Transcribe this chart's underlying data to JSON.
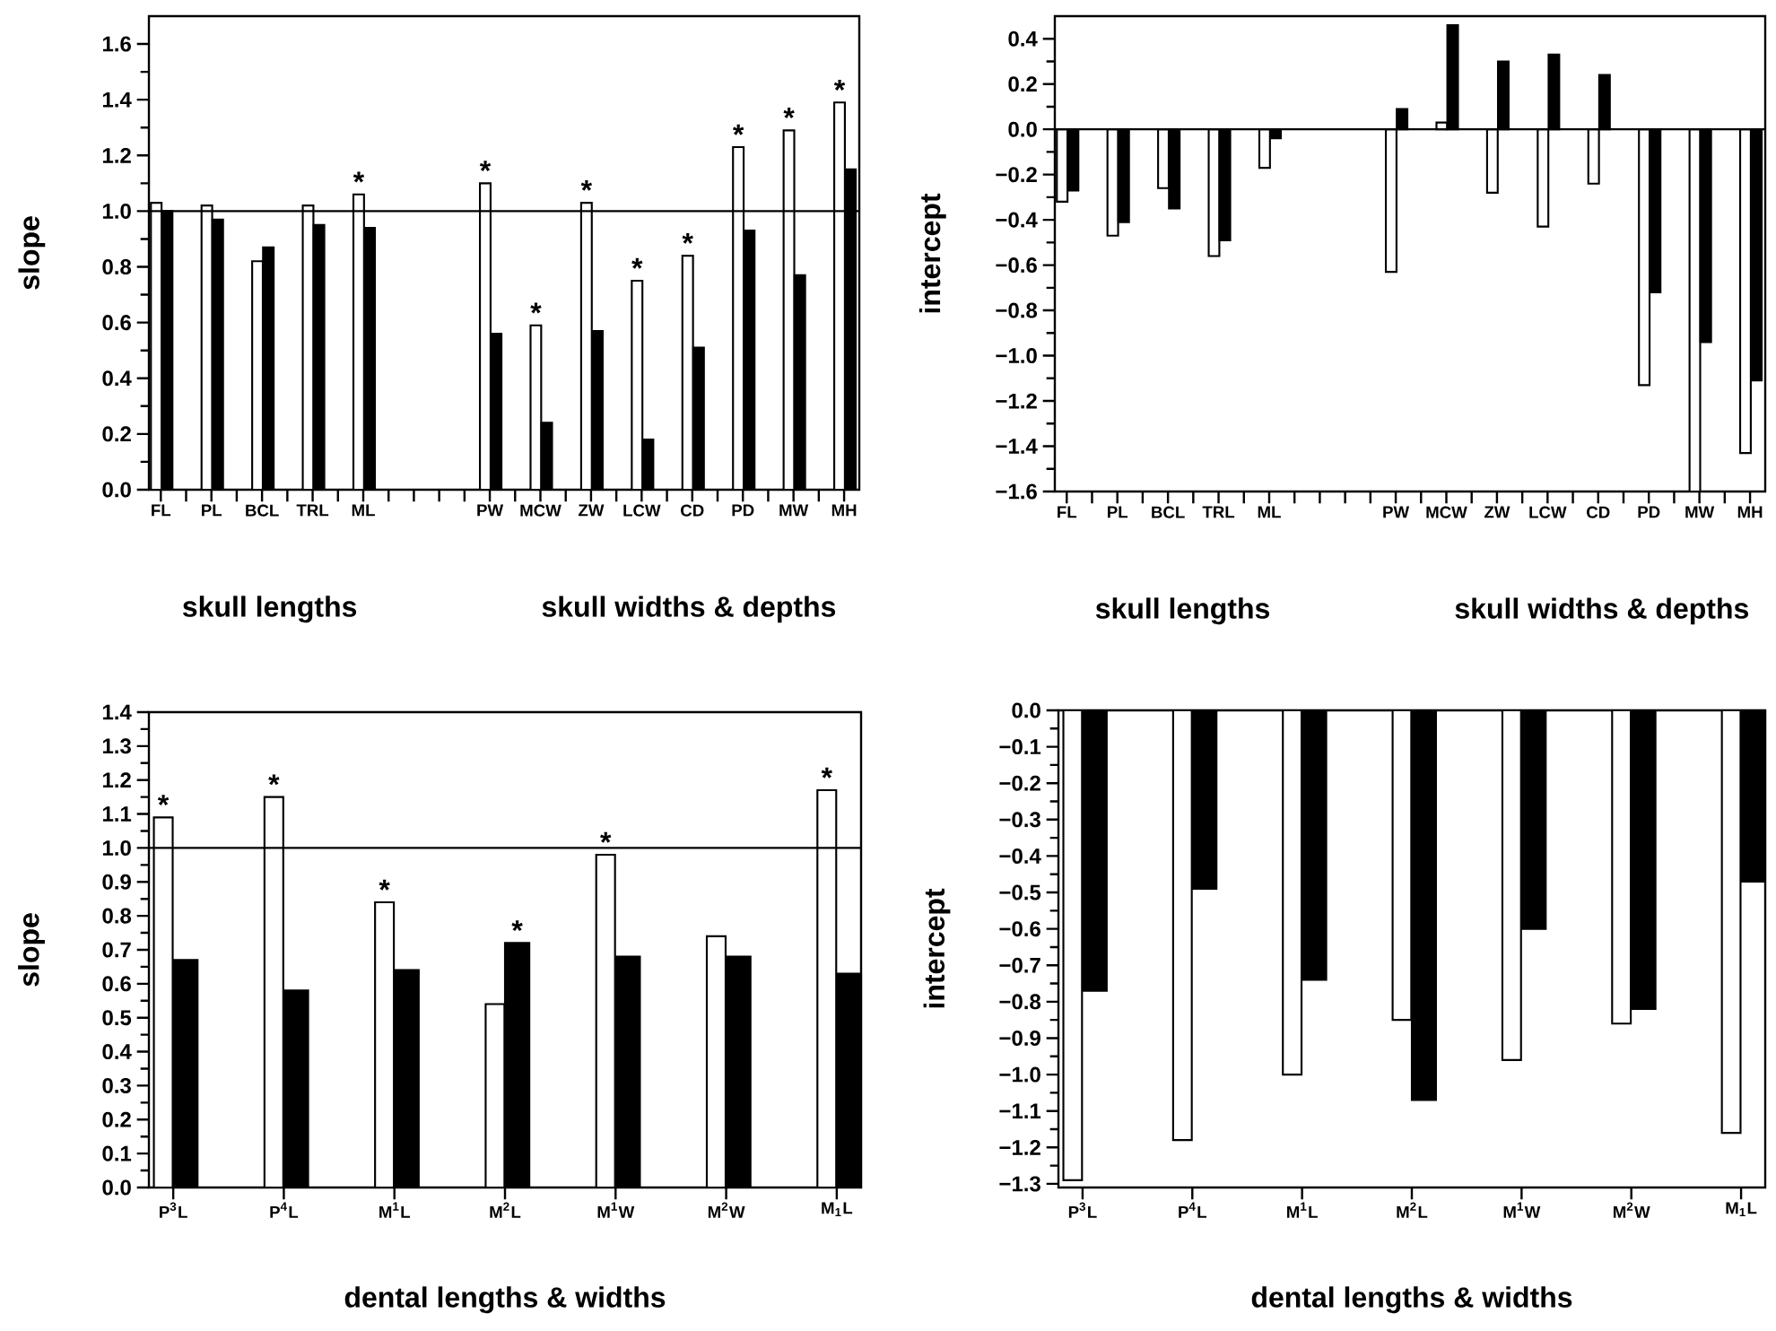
{
  "chart_data": [
    {
      "type": "bar",
      "ylabel": "slope",
      "categories": [
        "FL",
        null,
        "PL",
        null,
        "BCL",
        null,
        "TRL",
        null,
        "ML",
        null,
        null,
        null,
        null,
        "PW",
        null,
        "MCW",
        null,
        "ZW",
        null,
        "LCW",
        null,
        "CD",
        null,
        "PD",
        null,
        "MW",
        null,
        "MH"
      ],
      "series": [
        {
          "color": "#ffffff",
          "values": [
            1.03,
            null,
            1.02,
            null,
            0.82,
            null,
            1.02,
            null,
            1.06,
            null,
            null,
            null,
            null,
            1.1,
            null,
            0.59,
            null,
            1.03,
            null,
            0.75,
            null,
            0.84,
            null,
            1.23,
            null,
            1.29,
            null,
            1.39
          ]
        },
        {
          "color": "#000000",
          "values": [
            1.0,
            null,
            0.97,
            null,
            0.87,
            null,
            0.95,
            null,
            0.94,
            null,
            null,
            null,
            null,
            0.56,
            null,
            0.24,
            null,
            0.57,
            null,
            0.18,
            null,
            0.51,
            null,
            0.93,
            null,
            0.77,
            null,
            1.15
          ]
        }
      ],
      "ylim": [
        0,
        1.7
      ],
      "yticks": [
        {
          "value": 0,
          "label": "0.0"
        },
        {
          "value": 0.2,
          "label": "0.2"
        },
        {
          "value": 0.4,
          "label": "0.4"
        },
        {
          "value": 0.6,
          "label": "0.6"
        },
        {
          "value": 0.8,
          "label": "0.8"
        },
        {
          "value": 1.0,
          "label": "1.0"
        },
        {
          "value": 1.2,
          "label": "1.2"
        },
        {
          "value": 1.4,
          "label": "1.4"
        },
        {
          "value": 1.6,
          "label": "1.6"
        }
      ],
      "ref_lines": [
        {
          "axis": "y",
          "value": 1.0
        }
      ],
      "annotations": [
        {
          "text": "*",
          "x": "ML",
          "y": 1.06
        },
        {
          "text": "*",
          "x": "PW",
          "y": 1.1
        },
        {
          "text": "*",
          "x": "MCW",
          "y": 0.59
        },
        {
          "text": "*",
          "x": "ZW",
          "y": 1.03
        },
        {
          "text": "*",
          "x": "LCW",
          "y": 0.75
        },
        {
          "text": "*",
          "x": "CD",
          "y": 0.84
        },
        {
          "text": "*",
          "x": "PD",
          "y": 1.23
        },
        {
          "text": "*",
          "x": "MW",
          "y": 1.29
        },
        {
          "text": "*",
          "x": "MH",
          "y": 1.39
        },
        "skull lengths",
        "skull widths & depths"
      ]
    },
    {
      "type": "bar",
      "ylabel": "intercept",
      "categories": [
        "FL",
        null,
        "PL",
        null,
        "BCL",
        null,
        "TRL",
        null,
        "ML",
        null,
        null,
        null,
        null,
        "PW",
        null,
        "MCW",
        null,
        "ZW",
        null,
        "LCW",
        null,
        "CD",
        null,
        "PD",
        null,
        "MW",
        null,
        "MH"
      ],
      "series": [
        {
          "color": "#ffffff",
          "values": [
            -0.32,
            null,
            -0.47,
            null,
            -0.26,
            null,
            -0.56,
            null,
            -0.17,
            null,
            null,
            null,
            null,
            -0.63,
            null,
            0.03,
            null,
            -0.28,
            null,
            -0.43,
            null,
            -0.24,
            null,
            -1.13,
            null,
            -1.6,
            null,
            -1.43
          ]
        },
        {
          "color": "#000000",
          "values": [
            -0.27,
            null,
            -0.41,
            null,
            -0.35,
            null,
            -0.49,
            null,
            -0.04,
            null,
            null,
            null,
            null,
            0.09,
            null,
            0.46,
            null,
            0.3,
            null,
            0.33,
            null,
            0.24,
            null,
            -0.72,
            null,
            -0.94,
            null,
            -1.11
          ]
        }
      ],
      "ylim": [
        -1.6,
        0.5
      ],
      "yticks": [
        {
          "value": 0.4,
          "label": "0.4"
        },
        {
          "value": 0.2,
          "label": "0.2"
        },
        {
          "value": 0,
          "label": "0.0"
        },
        {
          "value": -0.2,
          "label": "−0.2"
        },
        {
          "value": -0.4,
          "label": "−0.4"
        },
        {
          "value": -0.6,
          "label": "−0.6"
        },
        {
          "value": -0.8,
          "label": "−0.8"
        },
        {
          "value": -1.0,
          "label": "−1.0"
        },
        {
          "value": -1.2,
          "label": "−1.2"
        },
        {
          "value": -1.4,
          "label": "−1.4"
        },
        {
          "value": -1.6,
          "label": "−1.6"
        }
      ],
      "ref_lines": [
        {
          "axis": "y",
          "value": 0
        }
      ],
      "annotations": [
        "skull lengths",
        "skull widths & depths"
      ]
    },
    {
      "type": "bar",
      "ylabel": "slope",
      "xlabel": "dental lengths & widths",
      "categories": [
        "P$^{3}$L",
        "P$^{4}$L",
        "M$^{1}$L",
        "M$^{2}$L",
        "M$^{1}$W",
        "M$^{2}$W",
        "M$_{1}$L"
      ],
      "series": [
        {
          "color": "#ffffff",
          "values": [
            1.09,
            1.15,
            0.84,
            0.54,
            0.98,
            0.74,
            1.17
          ]
        },
        {
          "color": "#000000",
          "values": [
            0.67,
            0.58,
            0.64,
            0.72,
            0.68,
            0.68,
            0.63
          ]
        }
      ],
      "ylim": [
        0,
        1.4
      ],
      "yticks": [
        {
          "value": 0,
          "label": "0.0"
        },
        {
          "value": 0.1,
          "label": "0.1"
        },
        {
          "value": 0.2,
          "label": "0.2"
        },
        {
          "value": 0.3,
          "label": "0.3"
        },
        {
          "value": 0.4,
          "label": "0.4"
        },
        {
          "value": 0.5,
          "label": "0.5"
        },
        {
          "value": 0.6,
          "label": "0.6"
        },
        {
          "value": 0.7,
          "label": "0.7"
        },
        {
          "value": 0.8,
          "label": "0.8"
        },
        {
          "value": 0.9,
          "label": "0.9"
        },
        {
          "value": 1.0,
          "label": "1.0"
        },
        {
          "value": 1.1,
          "label": "1.1"
        },
        {
          "value": 1.2,
          "label": "1.2"
        },
        {
          "value": 1.3,
          "label": "1.3"
        },
        {
          "value": 1.4,
          "label": "1.4"
        }
      ],
      "ref_lines": [
        {
          "axis": "y",
          "value": 1.0
        }
      ],
      "annotations": [
        {
          "text": "*",
          "x": "P$^{3}$L",
          "y": 1.09
        },
        {
          "text": "*",
          "x": "P$^{4}$L",
          "y": 1.15
        },
        {
          "text": "*",
          "x": "M$^{1}$L",
          "y": 0.84
        },
        {
          "text": "*",
          "x": "M$^{2}$L",
          "y": 0.72
        },
        {
          "text": "*",
          "x": "M$^{1}$W",
          "y": 0.98
        },
        {
          "text": "*",
          "x": "M$_{1}$L",
          "y": 1.17
        }
      ]
    },
    {
      "type": "bar",
      "ylabel": "intercept",
      "xlabel": "dental lengths & widths",
      "categories": [
        "P$^{3}$L",
        "P$^{4}$L",
        "M$^{1}$L",
        "M$^{2}$L",
        "M$^{1}$W",
        "M$^{2}$W",
        "M$_{1}$L"
      ],
      "series": [
        {
          "color": "#ffffff",
          "values": [
            -1.29,
            -1.18,
            -1.0,
            -0.85,
            -0.96,
            -0.86,
            -1.16
          ]
        },
        {
          "color": "#000000",
          "values": [
            -0.77,
            -0.49,
            -0.74,
            -1.07,
            -0.6,
            -0.82,
            -0.47
          ]
        }
      ],
      "ylim": [
        -1.31,
        0
      ],
      "yticks": [
        {
          "value": 0,
          "label": "0.0"
        },
        {
          "value": -0.1,
          "label": "−0.1"
        },
        {
          "value": -0.2,
          "label": "−0.2"
        },
        {
          "value": -0.3,
          "label": "−0.3"
        },
        {
          "value": -0.4,
          "label": "−0.4"
        },
        {
          "value": -0.5,
          "label": "−0.5"
        },
        {
          "value": -0.6,
          "label": "−0.6"
        },
        {
          "value": -0.7,
          "label": "−0.7"
        },
        {
          "value": -0.8,
          "label": "−0.8"
        },
        {
          "value": -0.9,
          "label": "−0.9"
        },
        {
          "value": -1.0,
          "label": "−1.0"
        },
        {
          "value": -1.1,
          "label": "−1.1"
        },
        {
          "value": -1.2,
          "label": "−1.2"
        },
        {
          "value": -1.3,
          "label": "−1.3"
        }
      ]
    }
  ]
}
